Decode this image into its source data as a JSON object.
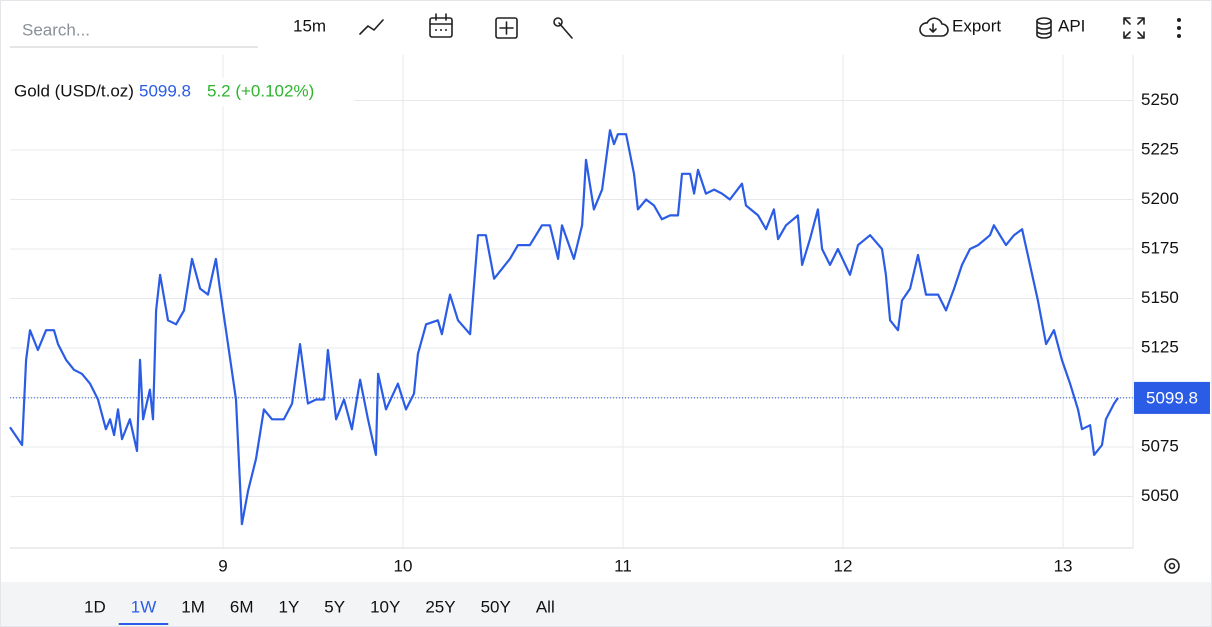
{
  "toolbar": {
    "search_placeholder": "Search...",
    "interval": "15m",
    "export": "Export",
    "api": "API"
  },
  "range_buttons": {
    "items": [
      "1D",
      "1W",
      "1M",
      "6M",
      "1Y",
      "5Y",
      "10Y",
      "25Y",
      "50Y",
      "All"
    ],
    "selected": "1W"
  },
  "chart_data": {
    "type": "line",
    "title": "Gold (USD/t.oz)",
    "change": "5.2 (+0.102%)",
    "color": "#2b5ce6",
    "change_color": "#2db52d",
    "grid": true,
    "xlim": [
      8.214,
      13.318
    ],
    "xticks": [
      {
        "value": 9.182,
        "label": "9"
      },
      10,
      11,
      12,
      13
    ],
    "ylim": [
      5024,
      5273
    ],
    "yticks": [
      5050,
      5075,
      5100,
      5125,
      5150,
      5175,
      5200,
      5225,
      5250
    ],
    "x": [
      8.214,
      8.269,
      8.287,
      8.305,
      8.341,
      8.378,
      8.414,
      8.432,
      8.469,
      8.505,
      8.541,
      8.578,
      8.614,
      8.65,
      8.669,
      8.687,
      8.705,
      8.723,
      8.759,
      8.791,
      8.805,
      8.819,
      8.85,
      8.864,
      8.878,
      8.896,
      8.932,
      8.969,
      9.005,
      9.041,
      9.078,
      9.114,
      9.15,
      9.168,
      9.205,
      9.241,
      9.268,
      9.296,
      9.332,
      9.368,
      9.405,
      9.459,
      9.496,
      9.532,
      9.568,
      9.605,
      9.641,
      9.659,
      9.696,
      9.732,
      9.768,
      9.805,
      9.841,
      9.877,
      9.887,
      9.923,
      9.977,
      10.014,
      10.05,
      10.068,
      10.105,
      10.159,
      10.177,
      10.214,
      10.25,
      10.305,
      10.341,
      10.377,
      10.414,
      10.45,
      10.486,
      10.523,
      10.577,
      10.632,
      10.668,
      10.705,
      10.723,
      10.777,
      10.814,
      10.832,
      10.868,
      10.905,
      10.941,
      10.959,
      10.977,
      11.014,
      11.05,
      11.068,
      11.105,
      11.141,
      11.177,
      11.214,
      11.25,
      11.268,
      11.305,
      11.323,
      11.341,
      11.377,
      11.414,
      11.45,
      11.486,
      11.541,
      11.559,
      11.614,
      11.65,
      11.686,
      11.705,
      11.741,
      11.795,
      11.814,
      11.85,
      11.886,
      11.905,
      11.941,
      11.977,
      12.032,
      12.068,
      12.123,
      12.177,
      12.195,
      12.214,
      12.25,
      12.268,
      12.305,
      12.341,
      12.377,
      12.432,
      12.468,
      12.505,
      12.541,
      12.577,
      12.614,
      12.668,
      12.686,
      12.741,
      12.777,
      12.814,
      12.85,
      12.886,
      12.923,
      12.959,
      12.995,
      13.032,
      13.068,
      13.086,
      13.123,
      13.141,
      13.177,
      13.195,
      13.232,
      13.25
    ],
    "values": [
      5085,
      5076,
      5119,
      5134,
      5124,
      5134,
      5134,
      5127,
      5119,
      5114,
      5112,
      5107,
      5099,
      5084,
      5089,
      5081,
      5094,
      5079,
      5089,
      5073,
      5119,
      5089,
      5104,
      5089,
      5144,
      5162,
      5139,
      5137,
      5144,
      5170,
      5155,
      5152,
      5170,
      5155,
      5127,
      5099,
      5036,
      5053,
      5069,
      5094,
      5089,
      5089,
      5097,
      5127,
      5097,
      5099,
      5099,
      5124,
      5089,
      5099,
      5084,
      5109,
      5089,
      5071,
      5112,
      5094,
      5107,
      5094,
      5102,
      5122,
      5137,
      5139,
      5132,
      5152,
      5139,
      5132,
      5182,
      5182,
      5160,
      5165,
      5170,
      5177,
      5177,
      5187,
      5187,
      5170,
      5187,
      5170,
      5187,
      5220,
      5195,
      5205,
      5235,
      5228,
      5233,
      5233,
      5213,
      5195,
      5200,
      5197,
      5190,
      5192,
      5192,
      5213,
      5213,
      5203,
      5215,
      5203,
      5205,
      5203,
      5200,
      5208,
      5197,
      5192,
      5185,
      5195,
      5180,
      5187,
      5192,
      5167,
      5180,
      5195,
      5175,
      5167,
      5175,
      5162,
      5177,
      5182,
      5175,
      5162,
      5139,
      5134,
      5149,
      5155,
      5172,
      5152,
      5152,
      5144,
      5155,
      5167,
      5175,
      5177,
      5182,
      5187,
      5177,
      5182,
      5185,
      5167,
      5149,
      5127,
      5134,
      5119,
      5107,
      5094,
      5084,
      5086,
      5071,
      5076,
      5089,
      5097,
      5099.8
    ]
  }
}
